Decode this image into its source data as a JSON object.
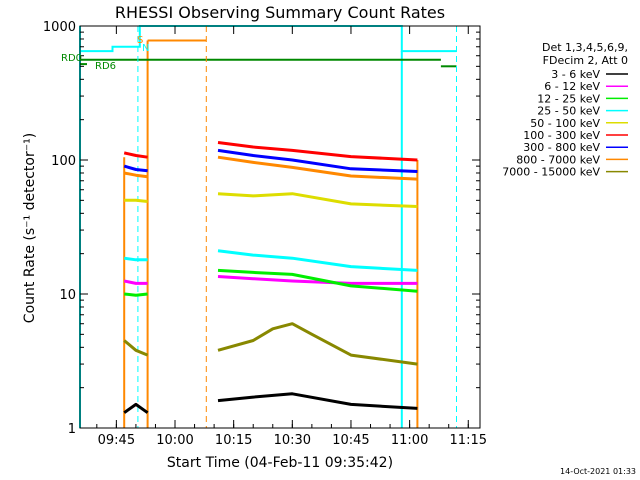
{
  "chart_data": {
    "type": "line",
    "title": "RHESSI Observing Summary Count Rates",
    "xlabel": "Start Time (04-Feb-11 09:35:42)",
    "ylabel": "Count Rate (s⁻¹ detector⁻¹)",
    "y_scale": "log",
    "xlim": [
      "09:35:42",
      "11:18:00"
    ],
    "ylim": [
      1,
      1000
    ],
    "x_ticks": [
      "09:45",
      "10:00",
      "10:15",
      "10:30",
      "10:45",
      "11:00",
      "11:15"
    ],
    "y_ticks": [
      1,
      10,
      100,
      1000
    ],
    "grid": false,
    "legend_header": [
      "Det 1,3,4,5,6,9,",
      "FDecim 2, Att 0"
    ],
    "legend_position": "right",
    "timestamp": "14-Oct-2021 01:33",
    "flag_labels": {
      "rd0": "RD0",
      "rd6": "RD6",
      "s": "S",
      "n": "N"
    },
    "series": [
      {
        "name": "3 - 6 keV",
        "color": "#000000",
        "segments": [
          {
            "x": [
              "09:47",
              "09:50",
              "09:53"
            ],
            "y": [
              1.3,
              1.5,
              1.3
            ]
          },
          {
            "x": [
              "10:11",
              "10:20",
              "10:30",
              "10:45",
              "11:02"
            ],
            "y": [
              1.6,
              1.7,
              1.8,
              1.5,
              1.4
            ]
          }
        ]
      },
      {
        "name": "6 - 12 keV",
        "color": "#ff00ff",
        "segments": [
          {
            "x": [
              "09:47",
              "09:50",
              "09:53"
            ],
            "y": [
              12.5,
              12,
              12
            ]
          },
          {
            "x": [
              "10:11",
              "10:20",
              "10:30",
              "10:45",
              "11:02"
            ],
            "y": [
              13.5,
              13,
              12.5,
              12,
              12
            ]
          }
        ]
      },
      {
        "name": "12 - 25 keV",
        "color": "#00ee00",
        "segments": [
          {
            "x": [
              "09:47",
              "09:50",
              "09:53"
            ],
            "y": [
              10,
              9.8,
              10
            ]
          },
          {
            "x": [
              "10:11",
              "10:20",
              "10:30",
              "10:45",
              "11:02"
            ],
            "y": [
              15,
              14.5,
              14,
              11.5,
              10.5
            ]
          }
        ]
      },
      {
        "name": "25 - 50 keV",
        "color": "#00ffff",
        "segments": [
          {
            "x": [
              "09:47",
              "09:50",
              "09:53"
            ],
            "y": [
              18.5,
              18,
              18
            ]
          },
          {
            "x": [
              "10:11",
              "10:20",
              "10:30",
              "10:45",
              "11:02"
            ],
            "y": [
              21,
              19.5,
              18.5,
              16,
              15
            ]
          }
        ]
      },
      {
        "name": "50 - 100 keV",
        "color": "#dddd00",
        "segments": [
          {
            "x": [
              "09:47",
              "09:50",
              "09:53"
            ],
            "y": [
              50,
              50,
              49
            ]
          },
          {
            "x": [
              "10:11",
              "10:20",
              "10:30",
              "10:45",
              "11:02"
            ],
            "y": [
              56,
              54,
              56,
              47,
              45
            ]
          }
        ]
      },
      {
        "name": "100 - 300 keV",
        "color": "#ff0000",
        "segments": [
          {
            "x": [
              "09:47",
              "09:50",
              "09:53"
            ],
            "y": [
              113,
              108,
              105
            ]
          },
          {
            "x": [
              "10:11",
              "10:20",
              "10:30",
              "10:45",
              "11:02"
            ],
            "y": [
              135,
              125,
              118,
              106,
              100
            ]
          }
        ]
      },
      {
        "name": "300 - 800 keV",
        "color": "#0000ff",
        "segments": [
          {
            "x": [
              "09:47",
              "09:50",
              "09:53"
            ],
            "y": [
              90,
              85,
              83
            ]
          },
          {
            "x": [
              "10:11",
              "10:20",
              "10:30",
              "10:45",
              "11:02"
            ],
            "y": [
              118,
              108,
              100,
              86,
              82
            ]
          }
        ]
      },
      {
        "name": "800 - 7000 keV",
        "color": "#ff8800",
        "segments": [
          {
            "x": [
              "09:47",
              "09:50",
              "09:53"
            ],
            "y": [
              80,
              77,
              75
            ]
          },
          {
            "x": [
              "10:11",
              "10:20",
              "10:30",
              "10:45",
              "11:02"
            ],
            "y": [
              105,
              96,
              88,
              76,
              72
            ]
          }
        ]
      },
      {
        "name": "7000 - 15000 keV",
        "color": "#888800",
        "segments": [
          {
            "x": [
              "09:47",
              "09:50",
              "09:53"
            ],
            "y": [
              4.5,
              3.8,
              3.5
            ]
          },
          {
            "x": [
              "10:11",
              "10:20",
              "10:25",
              "10:30",
              "10:35",
              "10:45",
              "11:02"
            ],
            "y": [
              3.8,
              4.5,
              5.5,
              6,
              5,
              3.5,
              3
            ]
          }
        ]
      }
    ],
    "state_lines": [
      {
        "color": "#00ffff",
        "x": [
          "09:35:42",
          "09:44",
          "09:44",
          "09:51",
          "09:51",
          "10:58",
          "10:58",
          "11:12"
        ],
        "y": [
          650,
          650,
          700,
          700,
          1000,
          1000,
          650,
          650
        ]
      },
      {
        "color": "#00ffff",
        "x": [
          "09:35:42",
          "09:35:42"
        ],
        "y": [
          1,
          1000
        ]
      },
      {
        "color": "#00ffff",
        "x": [
          "10:58",
          "10:58"
        ],
        "y": [
          1,
          650
        ]
      },
      {
        "color": "#ff8800",
        "x": [
          "09:53",
          "10:08"
        ],
        "y": [
          780,
          780
        ]
      },
      {
        "color": "#ff8800",
        "x": [
          "09:47",
          "09:47"
        ],
        "y": [
          1,
          105
        ]
      },
      {
        "color": "#ff8800",
        "x": [
          "09:53",
          "09:53"
        ],
        "y": [
          1,
          780
        ]
      },
      {
        "color": "#ff8800",
        "x": [
          "11:02",
          "11:02"
        ],
        "y": [
          1,
          100
        ]
      },
      {
        "color": "#008800",
        "x": [
          "09:35:42",
          "11:08"
        ],
        "y": [
          560,
          560
        ]
      },
      {
        "color": "#008800",
        "x": [
          "09:35:42",
          "09:37:30"
        ],
        "y": [
          520,
          520
        ]
      },
      {
        "color": "#008800",
        "x": [
          "11:08",
          "11:12"
        ],
        "y": [
          500,
          500
        ]
      }
    ],
    "dashed_lines": [
      {
        "color": "#00ffff",
        "x": "09:50:30"
      },
      {
        "color": "#ff8800",
        "x": "10:08"
      },
      {
        "color": "#00ffff",
        "x": "11:12"
      }
    ]
  }
}
